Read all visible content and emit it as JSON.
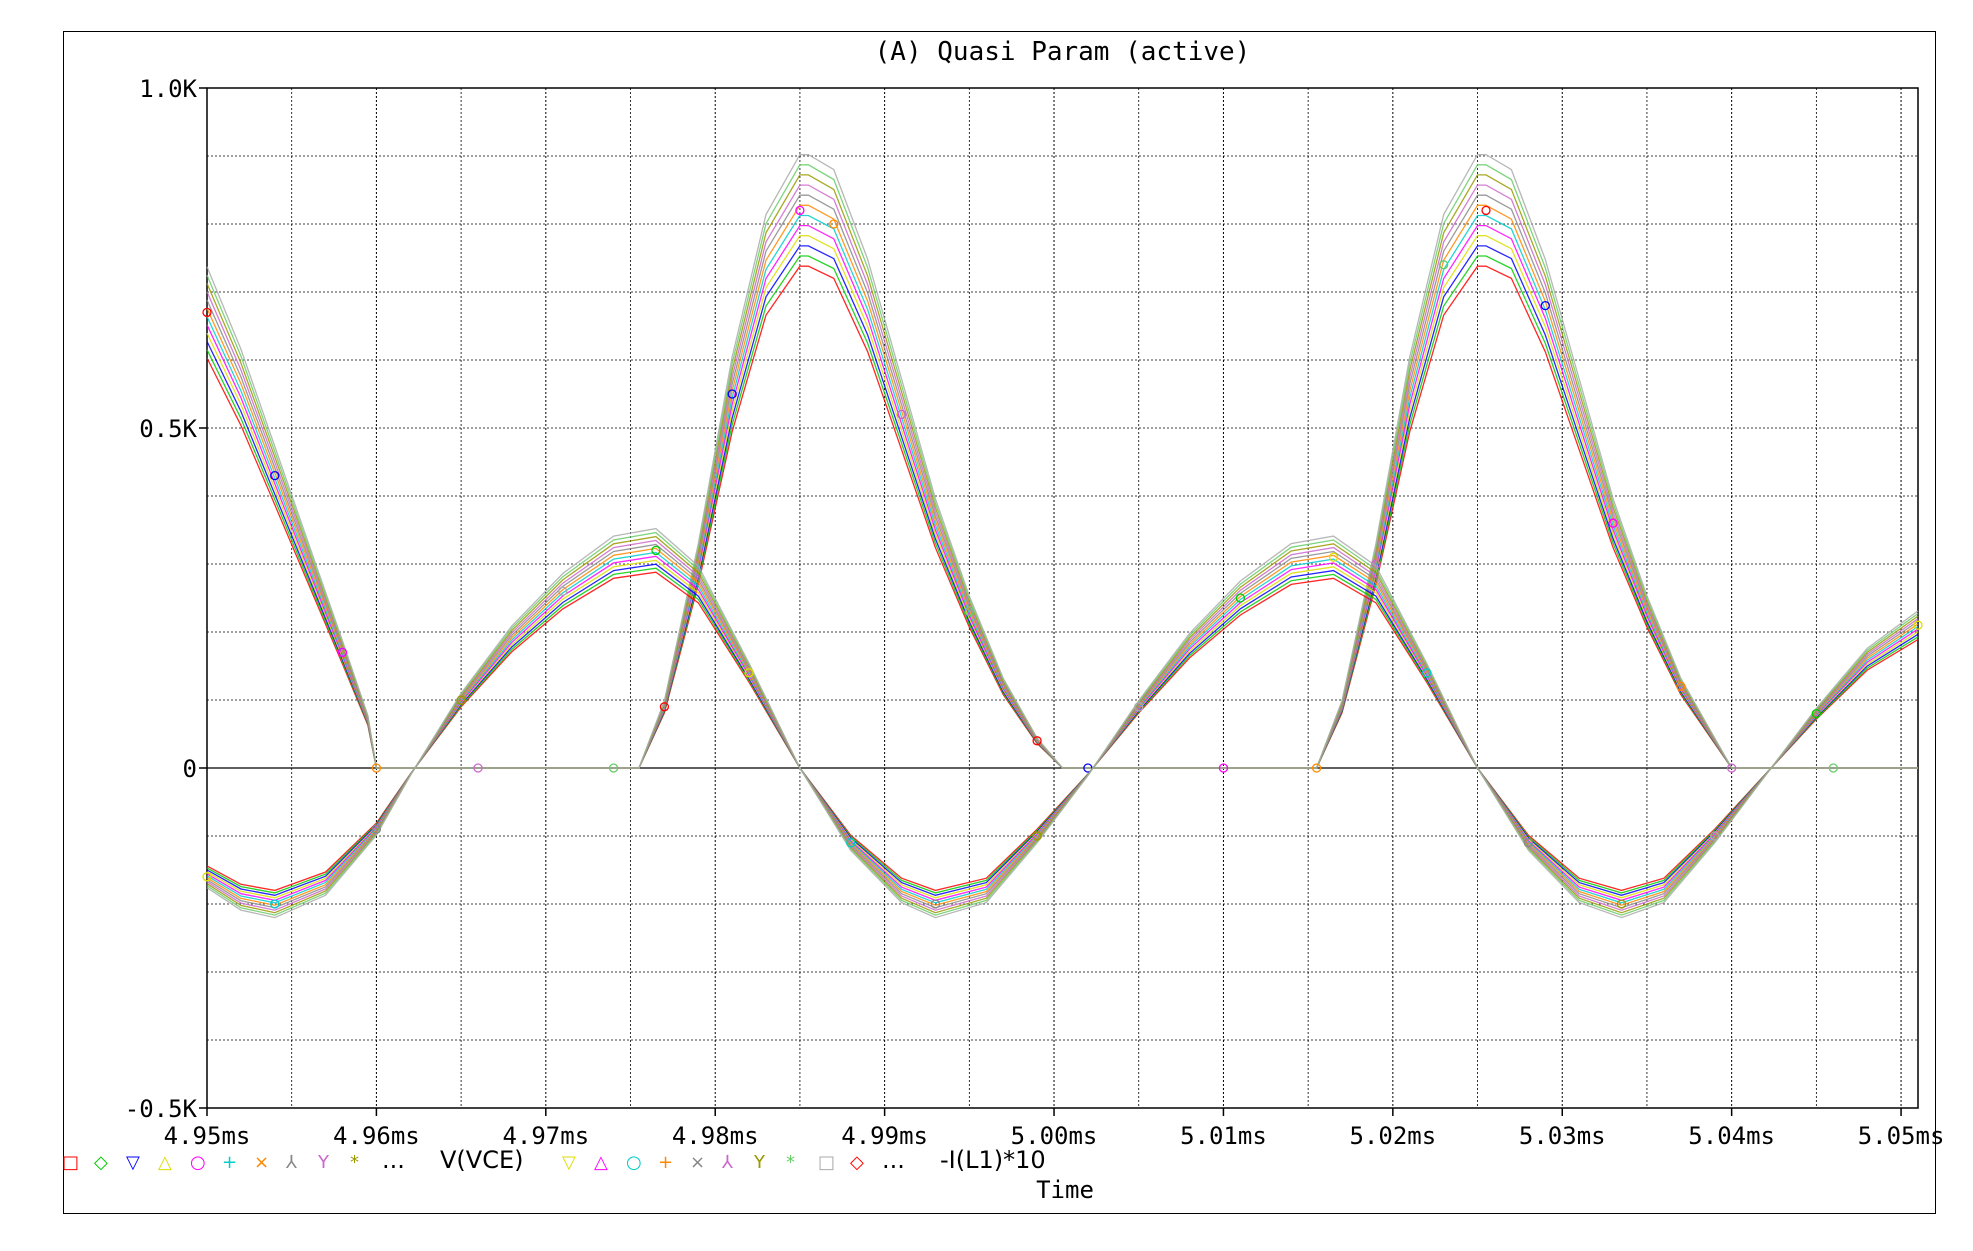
{
  "chart_data": {
    "type": "line",
    "title": "(A)  Quasi Param (active)",
    "xlabel": "Time",
    "ylabel": "",
    "xlim": [
      4.95,
      5.051
    ],
    "ylim": [
      -0.5,
      1.0
    ],
    "x_ticks": [
      "4.95ms",
      "4.96ms",
      "4.97ms",
      "4.98ms",
      "4.99ms",
      "5.00ms",
      "5.01ms",
      "5.02ms",
      "5.03ms",
      "5.04ms",
      "5.05ms"
    ],
    "y_ticks": [
      {
        "value": 1.0,
        "label": "1.0K"
      },
      {
        "value": 0.5,
        "label": "0.5K"
      },
      {
        "value": 0.0,
        "label": "0"
      },
      {
        "value": -0.5,
        "label": "-0.5K"
      }
    ],
    "grid": true,
    "legend": {
      "placement": "bottom",
      "vce_symbols": [
        "□",
        "◇",
        "▽",
        "△",
        "○",
        "+",
        "×",
        "⅄",
        "Y",
        "*"
      ],
      "vce_ellipsis": "...",
      "vce_name": "V(VCE)",
      "il_symbols": [
        "▽",
        "△",
        "○",
        "+",
        "×",
        "⅄",
        "Y",
        "*",
        "□",
        "◇"
      ],
      "il_ellipsis": "...",
      "il_name": "-I(L1)*10"
    },
    "series": [
      {
        "name": "V(VCE)",
        "note_values_in_K": true,
        "x": [
          4.95,
          4.952,
          4.954,
          4.956,
          4.958,
          4.9595,
          4.96,
          4.962,
          4.966,
          4.97,
          4.974,
          4.9755,
          4.977,
          4.979,
          4.981,
          4.983,
          4.985,
          4.9855,
          4.987,
          4.989,
          4.991,
          4.993,
          4.995,
          4.997,
          4.999,
          5.0005,
          5.002,
          5.006,
          5.01,
          5.014,
          5.0155,
          5.017,
          5.019,
          5.021,
          5.023,
          5.025,
          5.0255,
          5.027,
          5.029,
          5.031,
          5.033,
          5.035,
          5.037,
          5.039,
          5.04,
          5.042,
          5.046,
          5.051
        ],
        "y": [
          0.67,
          0.56,
          0.43,
          0.3,
          0.17,
          0.07,
          0.0,
          0.0,
          0.0,
          0.0,
          0.0,
          0.0,
          0.09,
          0.3,
          0.55,
          0.74,
          0.82,
          0.82,
          0.8,
          0.68,
          0.52,
          0.36,
          0.23,
          0.12,
          0.04,
          0.0,
          0.0,
          0.0,
          0.0,
          0.0,
          0.0,
          0.09,
          0.3,
          0.55,
          0.74,
          0.82,
          0.82,
          0.8,
          0.68,
          0.52,
          0.36,
          0.23,
          0.12,
          0.04,
          0.0,
          0.0,
          0.0,
          0.0
        ]
      },
      {
        "name": "-I(L1)*10",
        "note_values_in_K": true,
        "x": [
          4.95,
          4.952,
          4.954,
          4.957,
          4.96,
          4.962,
          4.965,
          4.968,
          4.971,
          4.974,
          4.9765,
          4.979,
          4.982,
          4.985,
          4.988,
          4.991,
          4.993,
          4.996,
          4.999,
          5.002,
          5.005,
          5.008,
          5.011,
          5.014,
          5.0165,
          5.019,
          5.022,
          5.025,
          5.028,
          5.031,
          5.0335,
          5.036,
          5.039,
          5.042,
          5.045,
          5.048,
          5.051
        ],
        "y": [
          -0.16,
          -0.19,
          -0.2,
          -0.17,
          -0.09,
          -0.01,
          0.1,
          0.19,
          0.26,
          0.31,
          0.32,
          0.27,
          0.14,
          0.0,
          -0.11,
          -0.18,
          -0.2,
          -0.18,
          -0.1,
          -0.01,
          0.09,
          0.18,
          0.25,
          0.3,
          0.31,
          0.27,
          0.14,
          0.0,
          -0.11,
          -0.18,
          -0.2,
          -0.18,
          -0.1,
          -0.01,
          0.08,
          0.16,
          0.21
        ]
      }
    ],
    "colors": [
      "#ff0000",
      "#00cc00",
      "#0000ff",
      "#dddd00",
      "#ff00ff",
      "#00cccc",
      "#ff8800",
      "#888888",
      "#cc66cc",
      "#999900",
      "#66cc66",
      "#aaaaaa"
    ]
  }
}
